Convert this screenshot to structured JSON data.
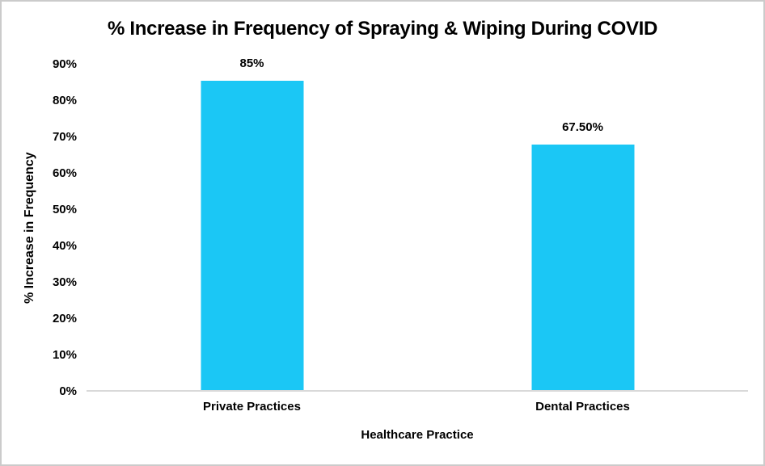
{
  "window": {
    "background_color": "#ffffff",
    "border_color": "#cbcbcb"
  },
  "chart_data": {
    "type": "bar",
    "title": "% Increase in Frequency of Spraying & Wiping During COVID",
    "xlabel": "Healthcare Practice",
    "ylabel": "% Increase in Frequency",
    "categories": [
      "Private Practices",
      "Dental Practices"
    ],
    "values": [
      85,
      67.5
    ],
    "data_labels": [
      "85%",
      "67.50%"
    ],
    "ylim": [
      0,
      90
    ],
    "yticks": [
      0,
      10,
      20,
      30,
      40,
      50,
      60,
      70,
      80,
      90
    ],
    "ytick_labels": [
      "0%",
      "10%",
      "20%",
      "30%",
      "40%",
      "50%",
      "60%",
      "70%",
      "80%",
      "90%"
    ],
    "grid": false,
    "legend": false,
    "bar_color": "#1BC7F5",
    "axis_line_color": "#d9d9d9",
    "text_color": "#000000"
  }
}
